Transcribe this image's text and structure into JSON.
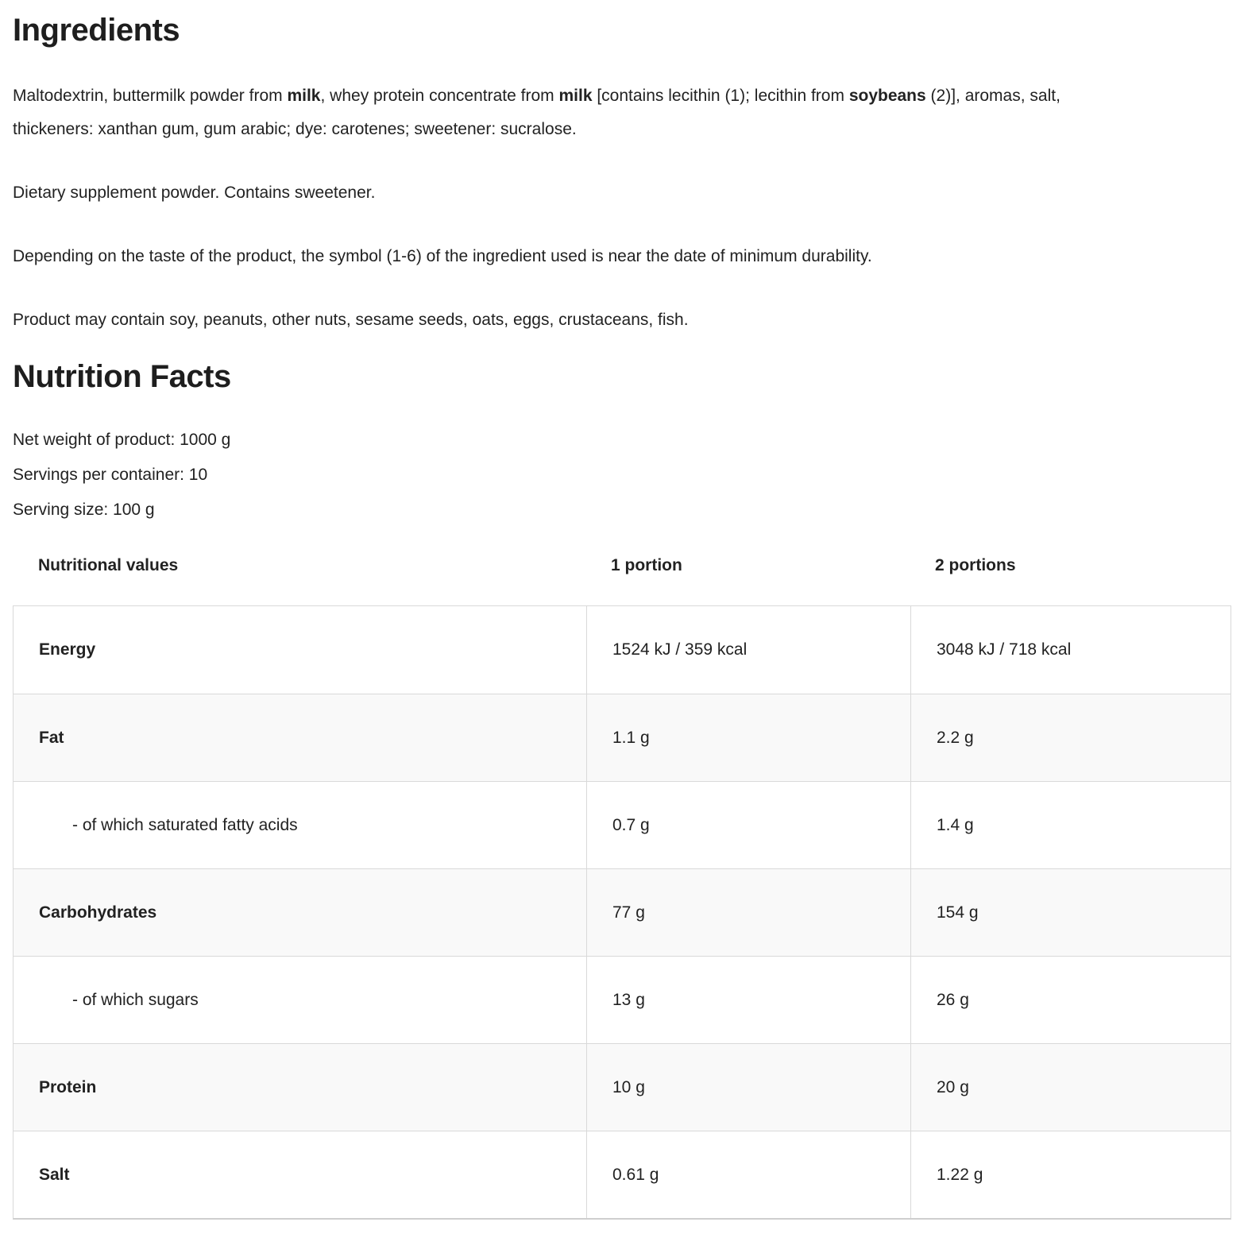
{
  "ingredients": {
    "title": "Ingredients",
    "main_paragraph": [
      {
        "text": "Maltodextrin, buttermilk powder from ",
        "bold": false
      },
      {
        "text": "milk",
        "bold": true
      },
      {
        "text": ", whey protein concentrate from ",
        "bold": false
      },
      {
        "text": "milk",
        "bold": true
      },
      {
        "text": " [contains lecithin (1); lecithin from ",
        "bold": false
      },
      {
        "text": "soybeans",
        "bold": true
      },
      {
        "text": " (2)], aromas, salt, thickeners: xanthan gum, gum arabic; dye: carotenes; sweetener: sucralose.",
        "bold": false
      }
    ],
    "paragraph_supplement": "Dietary supplement powder. Contains sweetener.",
    "paragraph_symbol": "Depending on the taste of the product, the symbol (1-6) of the ingredient used is near the date of minimum durability.",
    "paragraph_allergens": "Product may contain soy, peanuts, other nuts, sesame seeds, oats, eggs, crustaceans, fish."
  },
  "nutrition": {
    "title": "Nutrition Facts",
    "net_weight": "Net weight of product: 1000 g",
    "servings_per_container": "Servings per container: 10",
    "serving_size": "Serving size: 100 g",
    "table": {
      "headers": [
        "Nutritional values",
        "1 portion",
        "2 portions"
      ],
      "rows": [
        {
          "label": "Energy",
          "portion1": "1524 kJ / 359 kcal",
          "portion2": "3048 kJ / 718 kcal"
        },
        {
          "label": "Fat",
          "portion1": "1.1 g",
          "portion2": "2.2 g"
        },
        {
          "label": "- of which saturated fatty acids",
          "portion1": "0.7 g",
          "portion2": "1.4 g"
        },
        {
          "label": "Carbohydrates",
          "portion1": "77 g",
          "portion2": "154 g"
        },
        {
          "label": "- of which sugars",
          "portion1": "13 g",
          "portion2": "26 g"
        },
        {
          "label": "Protein",
          "portion1": "10 g",
          "portion2": "20 g"
        },
        {
          "label": "Salt",
          "portion1": "0.61 g",
          "portion2": "1.22 g"
        }
      ]
    }
  }
}
